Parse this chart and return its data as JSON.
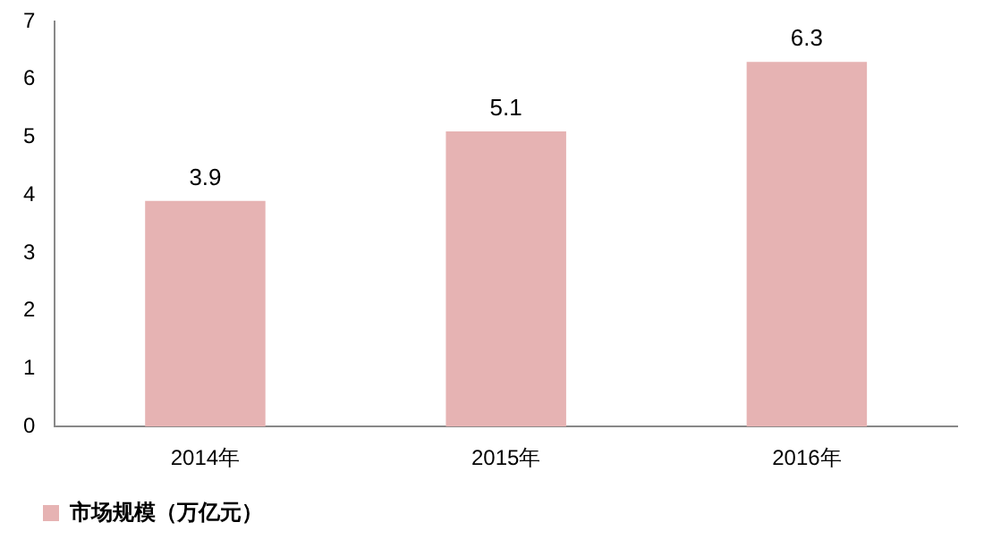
{
  "chart_data": {
    "type": "bar",
    "categories": [
      "2014年",
      "2015年",
      "2016年"
    ],
    "series": [
      {
        "name": "市场规模（万亿元）",
        "color": "#e6b3b3",
        "values": [
          3.9,
          5.1,
          6.3
        ]
      }
    ],
    "ylim": [
      0,
      7
    ],
    "yticks": [
      0,
      1,
      2,
      3,
      4,
      5,
      6,
      7
    ],
    "grid": false,
    "legend": "bottom",
    "data_labels": true
  }
}
